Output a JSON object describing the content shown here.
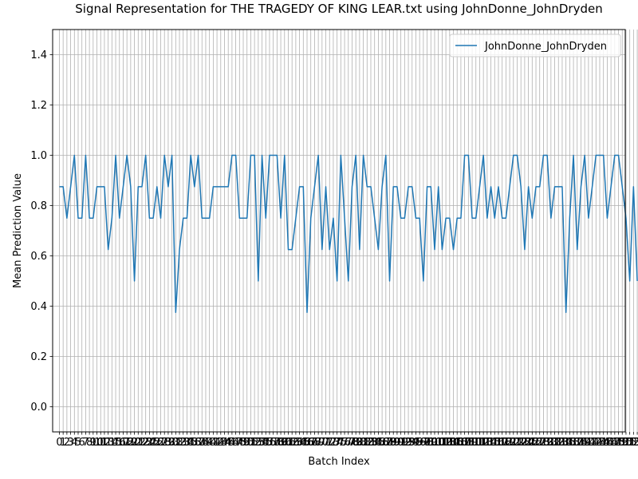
{
  "chart_data": {
    "type": "line",
    "title": "Signal Representation for THE TRAGEDY OF KING LEAR.txt using JohnDonne_JohnDryden",
    "xlabel": "Batch Index",
    "ylabel": "Mean Prediction Value",
    "ylim": [
      -0.1,
      1.5
    ],
    "xlim": [
      -1.8,
      150.8
    ],
    "yticks": [
      0.0,
      0.2,
      0.4,
      0.6,
      0.8,
      1.0,
      1.2,
      1.4
    ],
    "grid": true,
    "legend_position": "top-right",
    "series": [
      {
        "name": "JohnDonne_JohnDryden",
        "color": "#1f77b4",
        "values": [
          0.875,
          0.875,
          0.75,
          0.875,
          1.0,
          0.75,
          0.75,
          1.0,
          0.75,
          0.75,
          0.875,
          0.875,
          0.875,
          0.625,
          0.75,
          1.0,
          0.75,
          0.875,
          1.0,
          0.875,
          0.5,
          0.875,
          0.875,
          1.0,
          0.75,
          0.75,
          0.875,
          0.75,
          1.0,
          0.875,
          1.0,
          0.375,
          0.625,
          0.75,
          0.75,
          1.0,
          0.875,
          1.0,
          0.75,
          0.75,
          0.75,
          0.875,
          0.875,
          0.875,
          0.875,
          0.875,
          1.0,
          1.0,
          0.75,
          0.75,
          0.75,
          1.0,
          1.0,
          0.5,
          1.0,
          0.75,
          1.0,
          1.0,
          1.0,
          0.75,
          1.0,
          0.625,
          0.625,
          0.75,
          0.875,
          0.875,
          0.375,
          0.75,
          0.875,
          1.0,
          0.625,
          0.875,
          0.625,
          0.75,
          0.5,
          1.0,
          0.75,
          0.5,
          0.875,
          1.0,
          0.625,
          1.0,
          0.875,
          0.875,
          0.75,
          0.625,
          0.875,
          1.0,
          0.5,
          0.875,
          0.875,
          0.75,
          0.75,
          0.875,
          0.875,
          0.75,
          0.75,
          0.5,
          0.875,
          0.875,
          0.625,
          0.875,
          0.625,
          0.75,
          0.75,
          0.625,
          0.75,
          0.75,
          1.0,
          1.0,
          0.75,
          0.75,
          0.875,
          1.0,
          0.75,
          0.875,
          0.75,
          0.875,
          0.75,
          0.75,
          0.875,
          1.0,
          1.0,
          0.875,
          0.625,
          0.875,
          0.75,
          0.875,
          0.875,
          1.0,
          1.0,
          0.75,
          0.875,
          0.875,
          0.875,
          0.375,
          0.75,
          1.0,
          0.625,
          0.875,
          1.0,
          0.75,
          0.875,
          1.0,
          1.0,
          1.0,
          0.75,
          0.875,
          1.0,
          1.0,
          0.875,
          0.75,
          0.5,
          0.875,
          0.5
        ]
      }
    ]
  }
}
